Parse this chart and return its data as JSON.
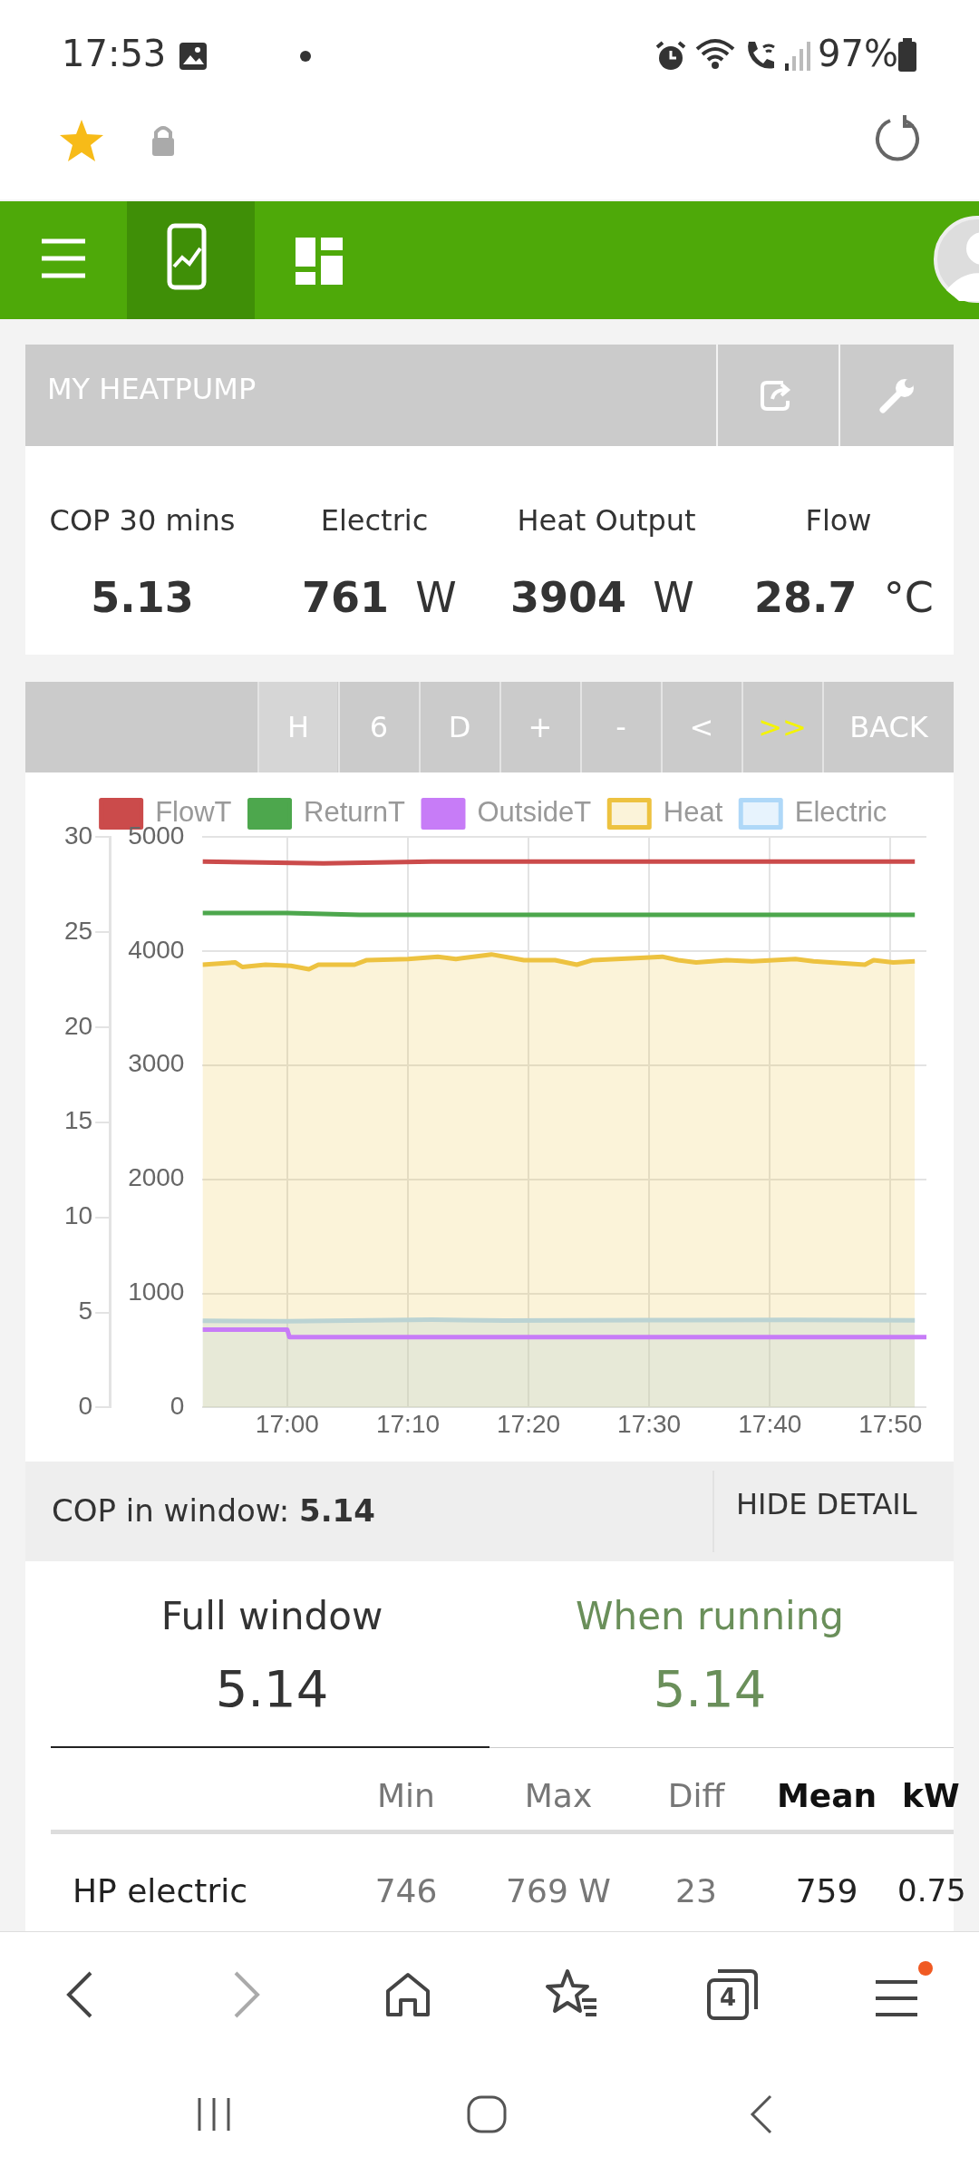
{
  "chart_data": {
    "type": "line",
    "annotations": [
      "17:53",
      "97%",
      "MY HEATPUMP",
      "COP 30 mins",
      "5.13",
      "Electric",
      "761",
      "W",
      "Heat Output",
      "3904",
      "W",
      "Flow",
      "28.7",
      "°C",
      "H",
      "6",
      "D",
      "+",
      "-",
      "<",
      ">>",
      "BACK",
      "COP in window: ",
      "5.14",
      "HIDE DETAIL",
      "Full window",
      "5.14",
      "When running",
      "5.14",
      "Min",
      "Max",
      "Diff",
      "Mean",
      "kW",
      "HP electric",
      "746",
      "769 W",
      "23",
      "759",
      "0.75",
      "4"
    ],
    "xlim": [
      16.883,
      17.883
    ],
    "xticks": [
      {
        "value": 17,
        "label": "17:00"
      },
      {
        "value": 17.1667,
        "label": "17:10"
      },
      {
        "value": 17.3333,
        "label": "17:20"
      },
      {
        "value": 17.5,
        "label": "17:30"
      },
      {
        "value": 17.6667,
        "label": "17:40"
      },
      {
        "value": 17.8333,
        "label": "17:50"
      }
    ],
    "ylim": [
      0,
      30
    ],
    "yticks": [
      0,
      5,
      10,
      15,
      20,
      25,
      30
    ],
    "y2lim": [
      0,
      5000
    ],
    "y2ticks": [
      0,
      1000,
      2000,
      3000,
      4000,
      5000
    ],
    "grid": true,
    "legend": "top",
    "marker": "none",
    "line_style": "solid",
    "series": [
      {
        "name": "FlowT",
        "type": "line",
        "color": "#cb4b4b",
        "x": [
          16.883,
          17.05,
          17.2,
          17.5,
          17.867
        ],
        "values": [
          28.7,
          28.6,
          28.7,
          28.7,
          28.7
        ]
      },
      {
        "name": "ReturnT",
        "type": "line",
        "color": "#4da74d",
        "x": [
          16.883,
          17.0,
          17.1,
          17.5,
          17.867
        ],
        "values": [
          26.0,
          26.0,
          25.9,
          25.9,
          25.9
        ]
      },
      {
        "name": "OutsideT",
        "type": "line",
        "color": "#c77cf7",
        "x": [
          16.883,
          17.0,
          17.003,
          17.883
        ],
        "values": [
          4.1,
          4.1,
          3.7,
          3.7
        ]
      },
      {
        "name": "Heat",
        "type": "area",
        "axis": "y2",
        "color": "#edc240",
        "x": [
          16.883,
          16.928,
          16.938,
          16.97,
          17.005,
          17.03,
          17.043,
          17.093,
          17.11,
          17.167,
          17.208,
          17.233,
          17.282,
          17.327,
          17.37,
          17.4,
          17.422,
          17.488,
          17.518,
          17.54,
          17.565,
          17.607,
          17.642,
          17.702,
          17.727,
          17.798,
          17.81,
          17.837,
          17.867
        ],
        "values": [
          3880,
          3900,
          3860,
          3880,
          3870,
          3840,
          3880,
          3880,
          3920,
          3930,
          3950,
          3930,
          3970,
          3920,
          3920,
          3880,
          3920,
          3940,
          3950,
          3920,
          3900,
          3920,
          3910,
          3930,
          3910,
          3880,
          3920,
          3900,
          3910
        ]
      },
      {
        "name": "Electric",
        "type": "area",
        "axis": "y2",
        "color": "#afd8f8",
        "x": [
          16.883,
          17.0,
          17.2,
          17.3,
          17.5,
          17.7,
          17.867
        ],
        "values": [
          760,
          755,
          769,
          762,
          765,
          768,
          764
        ]
      }
    ]
  }
}
